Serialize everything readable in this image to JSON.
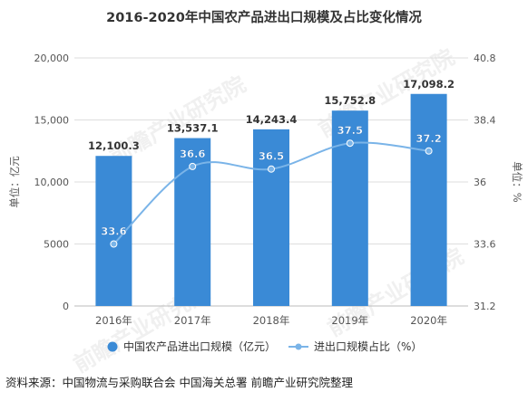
{
  "title": "2016-2020年中国农产品进出口规模及占比变化情况",
  "source": "资料来源：中国物流与采购联合会 中国海关总署 前瞻产业研究院整理",
  "watermark": "前瞻产业研究院",
  "colors": {
    "bar": "#3a8ad6",
    "line": "#7ab4e8",
    "grid": "#dddddd",
    "text": "#555555"
  },
  "chart_data": {
    "type": "bar",
    "categories": [
      "2016年",
      "2017年",
      "2018年",
      "2019年",
      "2020年"
    ],
    "series": [
      {
        "name": "中国农产品进出口规模（亿元）",
        "type": "bar",
        "axis": "left",
        "values": [
          12100.3,
          13537.1,
          14243.4,
          15752.8,
          17098.2
        ],
        "labels": [
          "12,100.3",
          "13,537.1",
          "14,243.4",
          "15,752.8",
          "17,098.2"
        ]
      },
      {
        "name": "进出口规模占比（%）",
        "type": "line",
        "axis": "right",
        "values": [
          33.6,
          36.6,
          36.5,
          37.5,
          37.2
        ],
        "labels": [
          "33.6",
          "36.6",
          "36.5",
          "37.5",
          "37.2"
        ]
      }
    ],
    "ylabel": "单位：亿元",
    "y2label": "单位：%",
    "ylim": [
      0,
      20000
    ],
    "y2lim": [
      31.2,
      40.8
    ],
    "yticks": [
      "0",
      "5000",
      "10,000",
      "15,000",
      "20,000"
    ],
    "y2ticks": [
      "31.2",
      "33.6",
      "36",
      "38.4",
      "40.8"
    ],
    "grid": true,
    "legend": "bottom"
  }
}
